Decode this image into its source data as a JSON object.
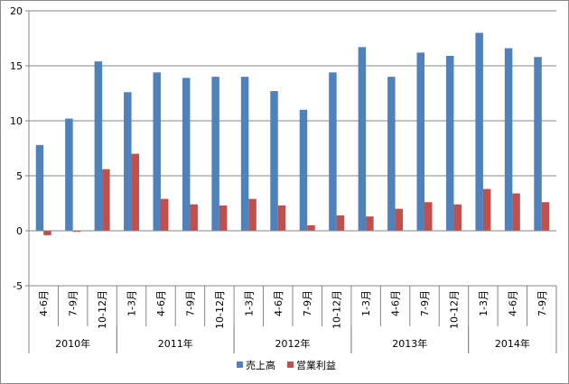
{
  "chart_data": {
    "type": "bar",
    "categories": [
      {
        "label": "4-6月",
        "year": "2010年"
      },
      {
        "label": "7-9月",
        "year": "2010年"
      },
      {
        "label": "10-12月",
        "year": "2010年"
      },
      {
        "label": "1-3月",
        "year": "2011年"
      },
      {
        "label": "4-6月",
        "year": "2011年"
      },
      {
        "label": "7-9月",
        "year": "2011年"
      },
      {
        "label": "10-12月",
        "year": "2011年"
      },
      {
        "label": "1-3月",
        "year": "2012年"
      },
      {
        "label": "4-6月",
        "year": "2012年"
      },
      {
        "label": "7-9月",
        "year": "2012年"
      },
      {
        "label": "10-12月",
        "year": "2012年"
      },
      {
        "label": "1-3月",
        "year": "2013年"
      },
      {
        "label": "4-6月",
        "year": "2013年"
      },
      {
        "label": "7-9月",
        "year": "2013年"
      },
      {
        "label": "10-12月",
        "year": "2013年"
      },
      {
        "label": "1-3月",
        "year": "2014年"
      },
      {
        "label": "4-6月",
        "year": "2014年"
      },
      {
        "label": "7-9月",
        "year": "2014年"
      }
    ],
    "years": [
      "2010年",
      "2011年",
      "2012年",
      "2013年",
      "2014年"
    ],
    "series": [
      {
        "name": "売上高",
        "color": "#4f81bd",
        "values": [
          7.8,
          10.2,
          15.4,
          12.6,
          14.4,
          13.9,
          14.0,
          14.0,
          12.7,
          11.0,
          14.4,
          16.7,
          14.0,
          16.2,
          15.9,
          18.0,
          16.6,
          15.8
        ]
      },
      {
        "name": "営業利益",
        "color": "#c0504d",
        "values": [
          -0.4,
          -0.1,
          5.6,
          7.0,
          2.9,
          2.4,
          2.3,
          2.9,
          2.3,
          0.5,
          1.4,
          1.3,
          2.0,
          2.6,
          2.4,
          3.8,
          3.4,
          2.6
        ]
      }
    ],
    "ylim": [
      -5,
      20
    ],
    "yticks": [
      -5,
      0,
      5,
      10,
      15,
      20
    ],
    "grid": true,
    "legend": "bottom",
    "title": "",
    "xlabel": "",
    "ylabel": ""
  }
}
